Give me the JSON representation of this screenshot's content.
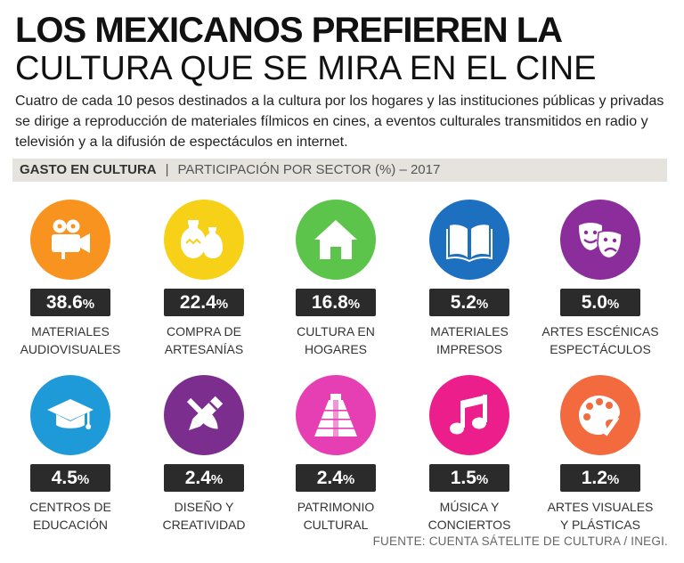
{
  "header": {
    "title_line1": "LOS MEXICANOS PREFIEREN LA",
    "title_line2": "CULTURA QUE SE MIRA EN EL CINE",
    "lead": "Cuatro de cada 10 pesos destinados a la cultura por los hogares y las instituciones públicas y privadas se dirige a reproducción de materiales fílmicos en cines, a eventos culturales transmitidos en radio y televisión y a la difusión de espectáculos en internet."
  },
  "section_bar": {
    "label": "GASTO EN CULTURA",
    "separator": "|",
    "subtitle": "PARTICIPACIÓN POR SECTOR (%) – 2017"
  },
  "chart_data": {
    "type": "table",
    "title": "GASTO EN CULTURA",
    "subtitle": "PARTICIPACIÓN POR SECTOR (%) – 2017",
    "unit": "%",
    "categories": [
      "MATERIALES AUDIOVISUALES",
      "COMPRA DE ARTESANÍAS",
      "CULTURA EN HOGARES",
      "MATERIALES IMPRESOS",
      "ARTES ESCÉNICAS ESPECTÁCULOS",
      "CENTROS DE EDUCACIÓN",
      "DISEÑO Y CREATIVIDAD",
      "PATRIMONIO CULTURAL",
      "MÚSICA Y CONCIERTOS",
      "ARTES VISUALES Y PLÁSTICAS"
    ],
    "values": [
      38.6,
      22.4,
      16.8,
      5.2,
      5.0,
      4.5,
      2.4,
      2.4,
      1.5,
      1.2
    ]
  },
  "items": [
    {
      "value": "38.6",
      "pct": "%",
      "label_l1": "MATERIALES",
      "label_l2": "AUDIOVISUALES",
      "icon": "movie-camera-icon",
      "color": "#f7931e"
    },
    {
      "value": "22.4",
      "pct": "%",
      "label_l1": "COMPRA DE",
      "label_l2": "ARTESANÍAS",
      "icon": "pottery-icon",
      "color": "#f7d117"
    },
    {
      "value": "16.8",
      "pct": "%",
      "label_l1": "CULTURA EN",
      "label_l2": "HOGARES",
      "icon": "house-icon",
      "color": "#5cc44a"
    },
    {
      "value": "5.2",
      "pct": "%",
      "label_l1": "MATERIALES",
      "label_l2": "IMPRESOS",
      "icon": "open-book-icon",
      "color": "#1d6fc0"
    },
    {
      "value": "5.0",
      "pct": "%",
      "label_l1": "ARTES ESCÉNICAS",
      "label_l2": "ESPECTÁCULOS",
      "icon": "theater-masks-icon",
      "color": "#8b2d9a"
    },
    {
      "value": "4.5",
      "pct": "%",
      "label_l1": "CENTROS DE",
      "label_l2": "EDUCACIÓN",
      "icon": "graduation-cap-icon",
      "color": "#1f9ad8"
    },
    {
      "value": "2.4",
      "pct": "%",
      "label_l1": "DISEÑO Y",
      "label_l2": "CREATIVIDAD",
      "icon": "pencil-brush-icon",
      "color": "#7b2e8e"
    },
    {
      "value": "2.4",
      "pct": "%",
      "label_l1": "PATRIMONIO",
      "label_l2": "CULTURAL",
      "icon": "pyramid-icon",
      "color": "#e63fb3"
    },
    {
      "value": "1.5",
      "pct": "%",
      "label_l1": "MÚSICA Y",
      "label_l2": "CONCIERTOS",
      "icon": "music-note-icon",
      "color": "#ec1e8c"
    },
    {
      "value": "1.2",
      "pct": "%",
      "label_l1": "ARTES VISUALES",
      "label_l2": "Y PLÁSTICAS",
      "icon": "palette-icon",
      "color": "#f26a3d"
    }
  ],
  "source": "FUENTE: CUENTA SÁTELITE DE CULTURA / INEGI."
}
